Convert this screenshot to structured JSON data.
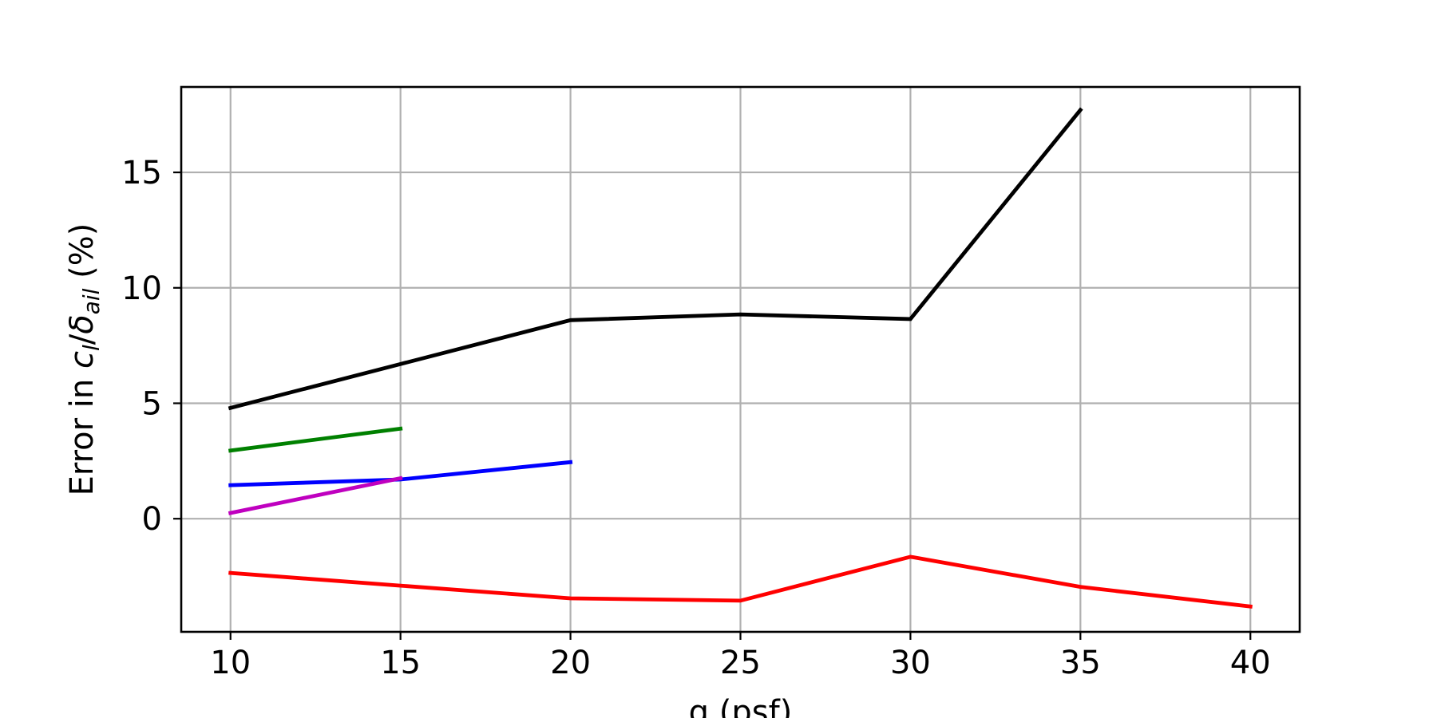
{
  "chart_data": {
    "type": "line",
    "title": "",
    "xlabel": "q (psf)",
    "ylabel": {
      "prefix": "Error in ",
      "c_symbol": "c",
      "c_sub": "l",
      "slash": "/",
      "delta_symbol": "δ",
      "delta_sub": "ail",
      "suffix": " (%)"
    },
    "xlim": [
      8.55,
      41.45
    ],
    "ylim": [
      -4.9,
      18.7
    ],
    "xticks": [
      10,
      15,
      20,
      25,
      30,
      35,
      40
    ],
    "xtick_labels": [
      "10",
      "15",
      "20",
      "25",
      "30",
      "35",
      "40"
    ],
    "yticks": [
      0,
      5,
      10,
      15
    ],
    "ytick_labels": [
      "0",
      "5",
      "10",
      "15"
    ],
    "grid": true,
    "legend": null,
    "series": [
      {
        "color": "#000000",
        "x": [
          10,
          15,
          20,
          25,
          30,
          35
        ],
        "y": [
          4.8,
          6.7,
          8.6,
          8.85,
          8.65,
          17.7
        ]
      },
      {
        "color": "#008000",
        "x": [
          10,
          15
        ],
        "y": [
          2.95,
          3.9
        ]
      },
      {
        "color": "#0000ff",
        "x": [
          10,
          15,
          20
        ],
        "y": [
          1.45,
          1.7,
          2.45
        ]
      },
      {
        "color": "#bf00bf",
        "x": [
          10,
          15
        ],
        "y": [
          0.25,
          1.75
        ]
      },
      {
        "color": "#ff0000",
        "x": [
          10,
          15,
          20,
          25,
          30,
          35,
          40
        ],
        "y": [
          -2.35,
          -2.9,
          -3.45,
          -3.55,
          -1.65,
          -2.95,
          -3.8
        ]
      }
    ]
  }
}
